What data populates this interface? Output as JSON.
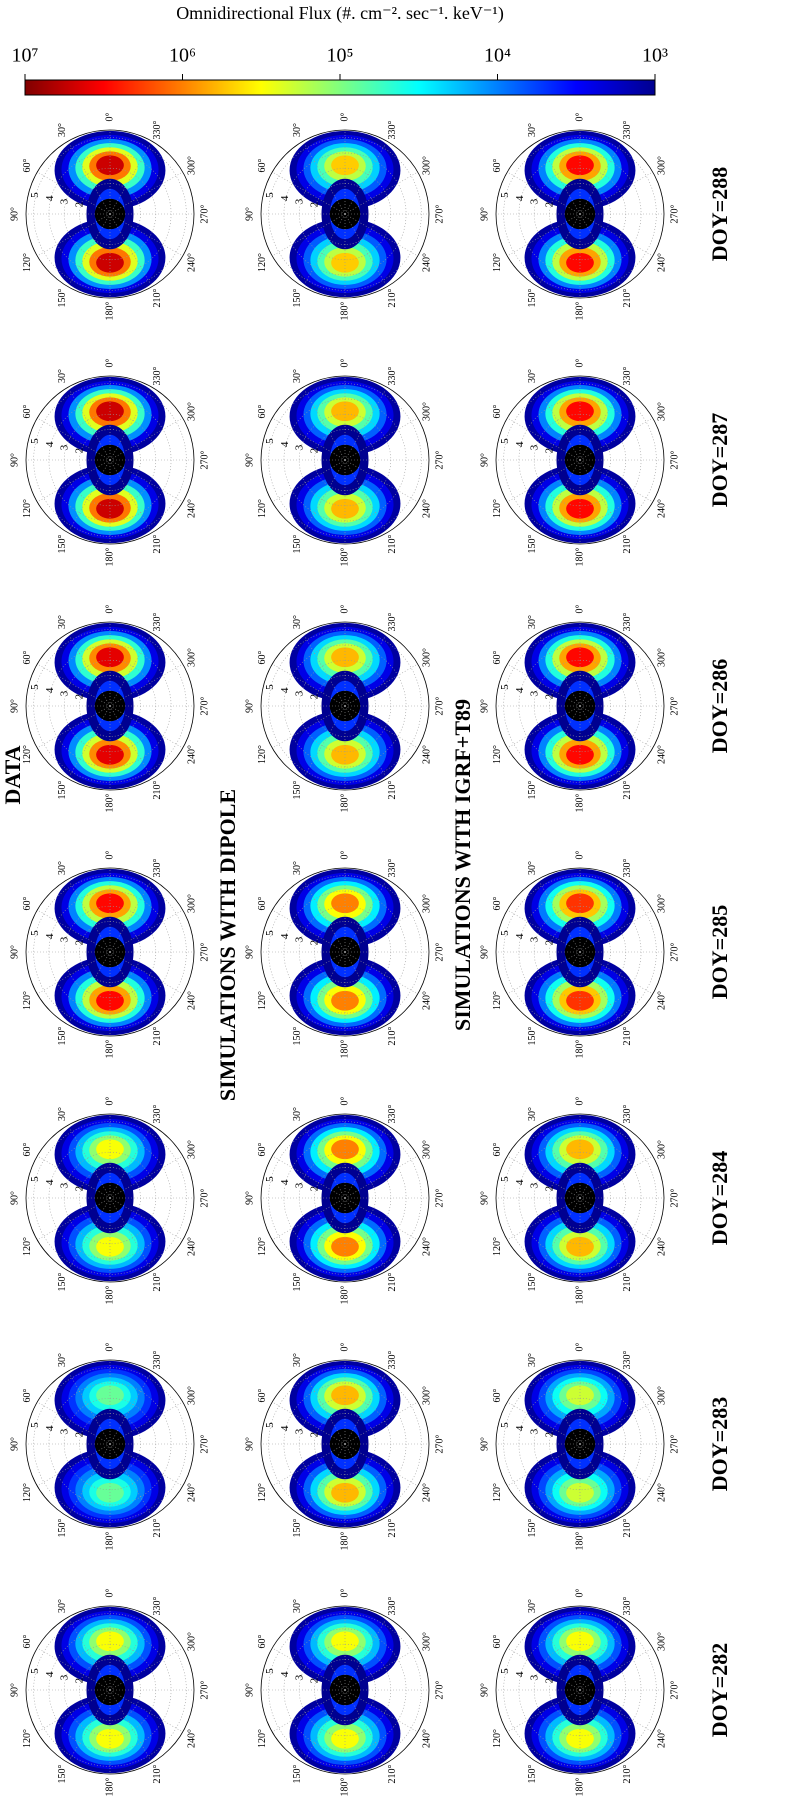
{
  "chart_data": {
    "type": "polar-contour",
    "colorbar_title": "Omnidirectional Flux (#. cm⁻². sec⁻¹. keV⁻¹)",
    "clim": [
      1000,
      10000000
    ],
    "log_scale": true,
    "colormap": "jet",
    "colorbar_ticks": [
      {
        "value": 10000000,
        "label": "10⁷"
      },
      {
        "value": 1000000,
        "label": "10⁶"
      },
      {
        "value": 100000,
        "label": "10⁵"
      },
      {
        "value": 10000,
        "label": "10⁴"
      },
      {
        "value": 1000,
        "label": "10³"
      }
    ],
    "rows": [
      "DATA",
      "SIMULATIONS WITH DIPOLE",
      "SIMULATIONS WITH IGRF+T89"
    ],
    "columns": [
      "DOY=282",
      "DOY=283",
      "DOY=284",
      "DOY=285",
      "DOY=286",
      "DOY=287",
      "DOY=288"
    ],
    "peak_flux": [
      [
        300000,
        80000,
        300000,
        3000000,
        4000000,
        5000000,
        5000000
      ],
      [
        300000,
        600000,
        1000000,
        1000000,
        600000,
        600000,
        500000
      ],
      [
        300000,
        200000,
        600000,
        2000000,
        3000000,
        3000000,
        3000000
      ]
    ],
    "angle_ticks": [
      {
        "value": 0,
        "label": "0°"
      },
      {
        "value": 30,
        "label": "30°"
      },
      {
        "value": 60,
        "label": "60°"
      },
      {
        "value": 90,
        "label": "90°"
      },
      {
        "value": 120,
        "label": "120°"
      },
      {
        "value": 150,
        "label": "150°"
      },
      {
        "value": 180,
        "label": "180°"
      },
      {
        "value": 210,
        "label": "210°"
      },
      {
        "value": 240,
        "label": "240°"
      },
      {
        "value": 270,
        "label": "270°"
      },
      {
        "value": 300,
        "label": "300°"
      },
      {
        "value": 330,
        "label": "330°"
      }
    ],
    "rlim": [
      0,
      5.5
    ],
    "rticks": [
      2,
      3,
      4,
      5
    ],
    "grid": true
  }
}
